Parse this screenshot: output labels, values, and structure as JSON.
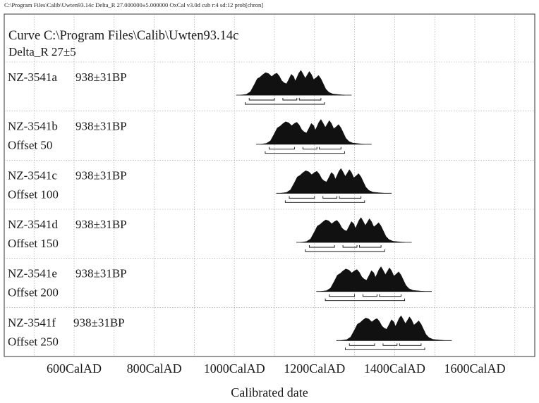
{
  "header": {
    "text": "C:\\Program Files\\Calib\\Uwten93.14c    Delta_R 27.000000±5.000000 OxCal v3.0d cub r:4 sd:12 prob[chron]"
  },
  "curve": {
    "line1": "Curve  C:\\Program Files\\Calib\\Uwten93.14c",
    "line2": "Delta_R 27±5"
  },
  "colors": {
    "distribution": "#111111",
    "grid": "#9a9a9a",
    "axis": "#333333",
    "background": "#ffffff"
  },
  "chart_data": {
    "type": "area",
    "xlabel": "Calibrated date",
    "x_unit": "CalAD",
    "xlim": [
      400,
      1800
    ],
    "x_ticks": [
      600,
      800,
      1000,
      1200,
      1400,
      1600
    ],
    "tick_labels": [
      "600CalAD",
      "800CalAD",
      "1000CalAD",
      "1200CalAD",
      "1400CalAD",
      "1600CalAD"
    ],
    "grid": true,
    "series": [
      {
        "name": "NZ-3541a",
        "date": "938±31BP",
        "offset_label": "",
        "density": [
          [
            1015,
            0
          ],
          [
            1030,
            0.03
          ],
          [
            1040,
            0.12
          ],
          [
            1050,
            0.38
          ],
          [
            1057,
            0.58
          ],
          [
            1064,
            0.64
          ],
          [
            1070,
            0.72
          ],
          [
            1078,
            0.8
          ],
          [
            1086,
            0.76
          ],
          [
            1093,
            0.66
          ],
          [
            1100,
            0.74
          ],
          [
            1106,
            0.78
          ],
          [
            1112,
            0.68
          ],
          [
            1118,
            0.52
          ],
          [
            1124,
            0.44
          ],
          [
            1130,
            0.4
          ],
          [
            1136,
            0.56
          ],
          [
            1142,
            0.74
          ],
          [
            1148,
            0.66
          ],
          [
            1152,
            0.5
          ],
          [
            1156,
            0.62
          ],
          [
            1161,
            0.78
          ],
          [
            1166,
            0.88
          ],
          [
            1171,
            0.76
          ],
          [
            1177,
            0.6
          ],
          [
            1182,
            0.72
          ],
          [
            1187,
            0.84
          ],
          [
            1192,
            0.74
          ],
          [
            1198,
            0.55
          ],
          [
            1204,
            0.62
          ],
          [
            1210,
            0.7
          ],
          [
            1216,
            0.58
          ],
          [
            1222,
            0.4
          ],
          [
            1228,
            0.22
          ],
          [
            1236,
            0.1
          ],
          [
            1246,
            0.04
          ],
          [
            1260,
            0.02
          ],
          [
            1275,
            0
          ]
        ],
        "ranges_68": [
          [
            1037,
            1100
          ],
          [
            1121,
            1156
          ],
          [
            1162,
            1216
          ]
        ],
        "ranges_95": [
          [
            1027,
            1225
          ]
        ]
      },
      {
        "name": "NZ-3541b",
        "date": "938±31BP",
        "offset_label": "Offset 50",
        "density": [
          [
            1065,
            0
          ],
          [
            1080,
            0.03
          ],
          [
            1090,
            0.12
          ],
          [
            1100,
            0.38
          ],
          [
            1107,
            0.58
          ],
          [
            1114,
            0.64
          ],
          [
            1120,
            0.72
          ],
          [
            1128,
            0.8
          ],
          [
            1136,
            0.76
          ],
          [
            1143,
            0.66
          ],
          [
            1150,
            0.74
          ],
          [
            1156,
            0.78
          ],
          [
            1162,
            0.68
          ],
          [
            1168,
            0.52
          ],
          [
            1174,
            0.44
          ],
          [
            1180,
            0.4
          ],
          [
            1186,
            0.56
          ],
          [
            1192,
            0.74
          ],
          [
            1198,
            0.66
          ],
          [
            1202,
            0.5
          ],
          [
            1206,
            0.62
          ],
          [
            1211,
            0.78
          ],
          [
            1216,
            0.88
          ],
          [
            1221,
            0.76
          ],
          [
            1227,
            0.6
          ],
          [
            1232,
            0.72
          ],
          [
            1237,
            0.84
          ],
          [
            1242,
            0.74
          ],
          [
            1248,
            0.55
          ],
          [
            1254,
            0.62
          ],
          [
            1260,
            0.7
          ],
          [
            1266,
            0.58
          ],
          [
            1272,
            0.4
          ],
          [
            1278,
            0.22
          ],
          [
            1286,
            0.1
          ],
          [
            1296,
            0.04
          ],
          [
            1310,
            0.02
          ],
          [
            1325,
            0
          ]
        ],
        "ranges_68": [
          [
            1087,
            1150
          ],
          [
            1171,
            1206
          ],
          [
            1212,
            1266
          ]
        ],
        "ranges_95": [
          [
            1077,
            1275
          ]
        ]
      },
      {
        "name": "NZ-3541c",
        "date": "938±31BP",
        "offset_label": "Offset 100",
        "density": [
          [
            1115,
            0
          ],
          [
            1130,
            0.03
          ],
          [
            1140,
            0.12
          ],
          [
            1150,
            0.38
          ],
          [
            1157,
            0.58
          ],
          [
            1164,
            0.64
          ],
          [
            1170,
            0.72
          ],
          [
            1178,
            0.8
          ],
          [
            1186,
            0.76
          ],
          [
            1193,
            0.66
          ],
          [
            1200,
            0.74
          ],
          [
            1206,
            0.78
          ],
          [
            1212,
            0.68
          ],
          [
            1218,
            0.52
          ],
          [
            1224,
            0.44
          ],
          [
            1230,
            0.4
          ],
          [
            1236,
            0.56
          ],
          [
            1242,
            0.74
          ],
          [
            1248,
            0.66
          ],
          [
            1252,
            0.5
          ],
          [
            1256,
            0.62
          ],
          [
            1261,
            0.78
          ],
          [
            1266,
            0.88
          ],
          [
            1271,
            0.76
          ],
          [
            1277,
            0.6
          ],
          [
            1282,
            0.72
          ],
          [
            1287,
            0.84
          ],
          [
            1292,
            0.74
          ],
          [
            1298,
            0.55
          ],
          [
            1304,
            0.62
          ],
          [
            1310,
            0.7
          ],
          [
            1316,
            0.58
          ],
          [
            1322,
            0.4
          ],
          [
            1328,
            0.22
          ],
          [
            1336,
            0.1
          ],
          [
            1346,
            0.04
          ],
          [
            1360,
            0.02
          ],
          [
            1375,
            0
          ]
        ],
        "ranges_68": [
          [
            1137,
            1200
          ],
          [
            1221,
            1256
          ],
          [
            1262,
            1316
          ]
        ],
        "ranges_95": [
          [
            1127,
            1325
          ]
        ]
      },
      {
        "name": "NZ-3541d",
        "date": "938±31BP",
        "offset_label": "Offset 150",
        "density": [
          [
            1165,
            0
          ],
          [
            1180,
            0.03
          ],
          [
            1190,
            0.12
          ],
          [
            1200,
            0.38
          ],
          [
            1207,
            0.58
          ],
          [
            1214,
            0.64
          ],
          [
            1220,
            0.72
          ],
          [
            1228,
            0.8
          ],
          [
            1236,
            0.76
          ],
          [
            1243,
            0.66
          ],
          [
            1250,
            0.74
          ],
          [
            1256,
            0.78
          ],
          [
            1262,
            0.68
          ],
          [
            1268,
            0.52
          ],
          [
            1274,
            0.44
          ],
          [
            1280,
            0.4
          ],
          [
            1286,
            0.56
          ],
          [
            1292,
            0.74
          ],
          [
            1298,
            0.66
          ],
          [
            1302,
            0.5
          ],
          [
            1306,
            0.62
          ],
          [
            1311,
            0.78
          ],
          [
            1316,
            0.88
          ],
          [
            1321,
            0.76
          ],
          [
            1327,
            0.6
          ],
          [
            1332,
            0.72
          ],
          [
            1337,
            0.84
          ],
          [
            1342,
            0.74
          ],
          [
            1348,
            0.55
          ],
          [
            1354,
            0.62
          ],
          [
            1360,
            0.7
          ],
          [
            1366,
            0.58
          ],
          [
            1372,
            0.4
          ],
          [
            1378,
            0.22
          ],
          [
            1386,
            0.1
          ],
          [
            1396,
            0.04
          ],
          [
            1410,
            0.02
          ],
          [
            1425,
            0
          ]
        ],
        "ranges_68": [
          [
            1187,
            1250
          ],
          [
            1271,
            1306
          ],
          [
            1312,
            1366
          ]
        ],
        "ranges_95": [
          [
            1177,
            1375
          ]
        ]
      },
      {
        "name": "NZ-3541e",
        "date": "938±31BP",
        "offset_label": "Offset 200",
        "density": [
          [
            1215,
            0
          ],
          [
            1230,
            0.03
          ],
          [
            1240,
            0.12
          ],
          [
            1250,
            0.38
          ],
          [
            1257,
            0.58
          ],
          [
            1264,
            0.64
          ],
          [
            1270,
            0.72
          ],
          [
            1278,
            0.8
          ],
          [
            1286,
            0.76
          ],
          [
            1293,
            0.66
          ],
          [
            1300,
            0.74
          ],
          [
            1306,
            0.78
          ],
          [
            1312,
            0.68
          ],
          [
            1318,
            0.52
          ],
          [
            1324,
            0.44
          ],
          [
            1330,
            0.4
          ],
          [
            1336,
            0.56
          ],
          [
            1342,
            0.74
          ],
          [
            1348,
            0.66
          ],
          [
            1352,
            0.5
          ],
          [
            1356,
            0.62
          ],
          [
            1361,
            0.78
          ],
          [
            1366,
            0.88
          ],
          [
            1371,
            0.76
          ],
          [
            1377,
            0.6
          ],
          [
            1382,
            0.72
          ],
          [
            1387,
            0.84
          ],
          [
            1392,
            0.74
          ],
          [
            1398,
            0.55
          ],
          [
            1404,
            0.62
          ],
          [
            1410,
            0.7
          ],
          [
            1416,
            0.58
          ],
          [
            1422,
            0.4
          ],
          [
            1428,
            0.22
          ],
          [
            1436,
            0.1
          ],
          [
            1446,
            0.04
          ],
          [
            1460,
            0.02
          ],
          [
            1475,
            0
          ]
        ],
        "ranges_68": [
          [
            1237,
            1300
          ],
          [
            1321,
            1356
          ],
          [
            1362,
            1416
          ]
        ],
        "ranges_95": [
          [
            1227,
            1425
          ]
        ]
      },
      {
        "name": "NZ-3541f",
        "date": "938±31BP",
        "offset_label": "Offset 250",
        "density": [
          [
            1265,
            0
          ],
          [
            1280,
            0.03
          ],
          [
            1290,
            0.12
          ],
          [
            1300,
            0.38
          ],
          [
            1307,
            0.58
          ],
          [
            1314,
            0.64
          ],
          [
            1320,
            0.72
          ],
          [
            1328,
            0.8
          ],
          [
            1336,
            0.76
          ],
          [
            1343,
            0.66
          ],
          [
            1350,
            0.74
          ],
          [
            1356,
            0.78
          ],
          [
            1362,
            0.68
          ],
          [
            1368,
            0.52
          ],
          [
            1374,
            0.44
          ],
          [
            1380,
            0.4
          ],
          [
            1386,
            0.56
          ],
          [
            1392,
            0.74
          ],
          [
            1398,
            0.66
          ],
          [
            1402,
            0.5
          ],
          [
            1406,
            0.62
          ],
          [
            1411,
            0.78
          ],
          [
            1416,
            0.88
          ],
          [
            1421,
            0.76
          ],
          [
            1427,
            0.6
          ],
          [
            1432,
            0.72
          ],
          [
            1437,
            0.84
          ],
          [
            1442,
            0.74
          ],
          [
            1448,
            0.55
          ],
          [
            1454,
            0.62
          ],
          [
            1460,
            0.7
          ],
          [
            1466,
            0.58
          ],
          [
            1472,
            0.4
          ],
          [
            1478,
            0.22
          ],
          [
            1486,
            0.1
          ],
          [
            1496,
            0.04
          ],
          [
            1510,
            0.02
          ],
          [
            1525,
            0
          ]
        ],
        "ranges_68": [
          [
            1287,
            1350
          ],
          [
            1371,
            1406
          ],
          [
            1412,
            1466
          ]
        ],
        "ranges_95": [
          [
            1277,
            1475
          ]
        ]
      }
    ]
  }
}
